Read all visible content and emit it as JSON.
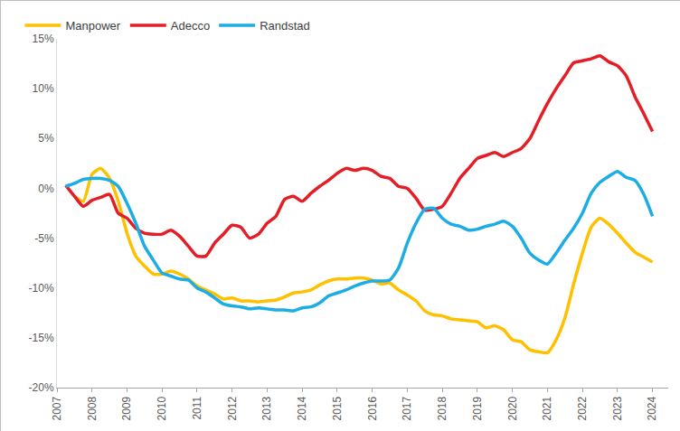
{
  "chart_data": {
    "type": "line",
    "x": [
      2007.25,
      2007.5,
      2007.75,
      2008,
      2008.25,
      2008.5,
      2008.75,
      2009,
      2009.25,
      2009.5,
      2009.75,
      2010,
      2010.25,
      2010.5,
      2010.75,
      2011,
      2011.25,
      2011.5,
      2011.75,
      2012,
      2012.25,
      2012.5,
      2012.75,
      2013,
      2013.25,
      2013.5,
      2013.75,
      2014,
      2014.25,
      2014.5,
      2014.75,
      2015,
      2015.25,
      2015.5,
      2015.75,
      2016,
      2016.25,
      2016.5,
      2016.75,
      2017,
      2017.25,
      2017.5,
      2017.75,
      2018,
      2018.25,
      2018.5,
      2018.75,
      2019,
      2019.25,
      2019.5,
      2019.75,
      2020,
      2020.25,
      2020.5,
      2020.75,
      2021,
      2021.25,
      2021.5,
      2021.75,
      2022,
      2022.25,
      2022.5,
      2022.75,
      2023,
      2023.25,
      2023.5,
      2023.75,
      2024
    ],
    "series": [
      {
        "name": "Manpower",
        "color": "#FFC000",
        "values": [
          null,
          -0.8,
          -1.3,
          1.4,
          2.0,
          1.0,
          -1.3,
          -4.5,
          -6.8,
          -7.8,
          -8.6,
          -8.6,
          -8.3,
          -8.6,
          -9.1,
          -9.8,
          -10.2,
          -10.6,
          -11.1,
          -11.0,
          -11.3,
          -11.3,
          -11.4,
          -11.3,
          -11.2,
          -10.9,
          -10.5,
          -10.4,
          -10.2,
          -9.7,
          -9.3,
          -9.1,
          -9.1,
          -9.0,
          -9.0,
          -9.2,
          -9.6,
          -9.5,
          -10.2,
          -10.7,
          -11.3,
          -12.3,
          -12.7,
          -12.8,
          -13.1,
          -13.2,
          -13.3,
          -13.4,
          -14.0,
          -13.8,
          -14.2,
          -15.2,
          -15.4,
          -16.2,
          -16.4,
          -16.5,
          -15.2,
          -13.0,
          -9.6,
          -6.5,
          -3.9,
          -3.0,
          -3.6,
          -4.5,
          -5.5,
          -6.4,
          -6.9,
          -7.4
        ]
      },
      {
        "name": "Adecco",
        "color": "#E41E26",
        "values": [
          0.3,
          -0.8,
          -1.8,
          -1.2,
          -0.9,
          -0.6,
          -2.5,
          -3.0,
          -4.0,
          -4.5,
          -4.6,
          -4.6,
          -4.2,
          -4.8,
          -5.8,
          -6.8,
          -6.8,
          -5.5,
          -4.6,
          -3.7,
          -3.9,
          -5.0,
          -4.6,
          -3.5,
          -2.8,
          -1.1,
          -0.8,
          -1.3,
          -0.5,
          0.2,
          0.8,
          1.5,
          2.0,
          1.8,
          2.0,
          1.8,
          1.2,
          1.0,
          0.2,
          0.0,
          -1.0,
          -2.2,
          -2.1,
          -1.8,
          -0.5,
          1.0,
          2.0,
          3.0,
          3.3,
          3.6,
          3.2,
          3.6,
          4.0,
          5.0,
          6.8,
          8.5,
          10.0,
          11.3,
          12.6,
          12.8,
          13.0,
          13.3,
          12.7,
          12.3,
          11.3,
          9.2,
          7.5,
          5.7
        ]
      },
      {
        "name": "Randstad",
        "color": "#1CADE4",
        "values": [
          0.2,
          0.5,
          0.9,
          1.0,
          1.0,
          0.8,
          0.2,
          -1.5,
          -3.5,
          -5.8,
          -7.2,
          -8.5,
          -8.8,
          -9.1,
          -9.2,
          -10.0,
          -10.4,
          -11.0,
          -11.6,
          -11.8,
          -11.9,
          -12.1,
          -12.0,
          -12.1,
          -12.2,
          -12.2,
          -12.3,
          -12.0,
          -11.9,
          -11.5,
          -10.8,
          -10.5,
          -10.2,
          -9.8,
          -9.5,
          -9.3,
          -9.3,
          -9.2,
          -8.0,
          -5.5,
          -3.5,
          -2.1,
          -2.0,
          -3.0,
          -3.6,
          -3.8,
          -4.2,
          -4.1,
          -3.8,
          -3.6,
          -3.3,
          -3.8,
          -5.0,
          -6.5,
          -7.2,
          -7.6,
          -6.5,
          -5.2,
          -4.0,
          -2.5,
          -0.5,
          0.6,
          1.2,
          1.7,
          1.1,
          0.8,
          -0.6,
          -2.8
        ]
      }
    ],
    "xlim": [
      2007,
      2024.45
    ],
    "xticks": [
      2007,
      2008,
      2009,
      2010,
      2011,
      2012,
      2013,
      2014,
      2015,
      2016,
      2017,
      2018,
      2019,
      2020,
      2021,
      2022,
      2023,
      2024
    ],
    "ylim": [
      -20,
      15
    ],
    "yticks": [
      {
        "value": -20,
        "label": "-20%"
      },
      {
        "value": -15,
        "label": "-15%"
      },
      {
        "value": -10,
        "label": "-10%"
      },
      {
        "value": -5,
        "label": "-5%"
      },
      {
        "value": 0,
        "label": "0%"
      },
      {
        "value": 5,
        "label": "5%"
      },
      {
        "value": 10,
        "label": "10%"
      },
      {
        "value": 15,
        "label": "15%"
      }
    ],
    "grid": false,
    "legend": "top-left"
  }
}
